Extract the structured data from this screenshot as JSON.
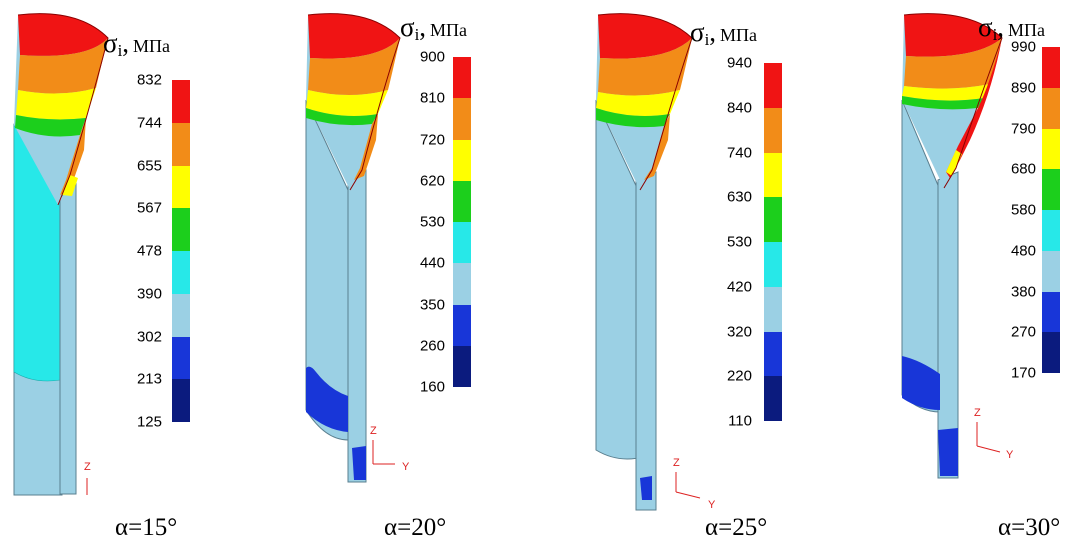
{
  "unit": "МПа",
  "stress_symbol": "σ",
  "stress_subscript": "i",
  "palette": [
    "#0b1b7e",
    "#1836d8",
    "#9bd0e4",
    "#27e8e8",
    "#1ccf1c",
    "#ffff00",
    "#f28c18",
    "#f01414"
  ],
  "panels": [
    {
      "angle_label": "α=15°",
      "ticks": [
        "832",
        "744",
        "655",
        "567",
        "478",
        "390",
        "302",
        "213",
        "125"
      ],
      "axis_x": "",
      "axis_z": "Z"
    },
    {
      "angle_label": "α=20°",
      "ticks": [
        "900",
        "810",
        "720",
        "620",
        "530",
        "440",
        "350",
        "260",
        "160"
      ],
      "axis_x": "Y",
      "axis_z": "Z"
    },
    {
      "angle_label": "α=25°",
      "ticks": [
        "940",
        "840",
        "740",
        "630",
        "530",
        "420",
        "320",
        "220",
        "110"
      ],
      "axis_x": "Y",
      "axis_z": "Z"
    },
    {
      "angle_label": "α=30°",
      "ticks": [
        "990",
        "890",
        "790",
        "680",
        "580",
        "480",
        "380",
        "270",
        "170"
      ],
      "axis_x": "Y",
      "axis_z": "Z"
    }
  ]
}
